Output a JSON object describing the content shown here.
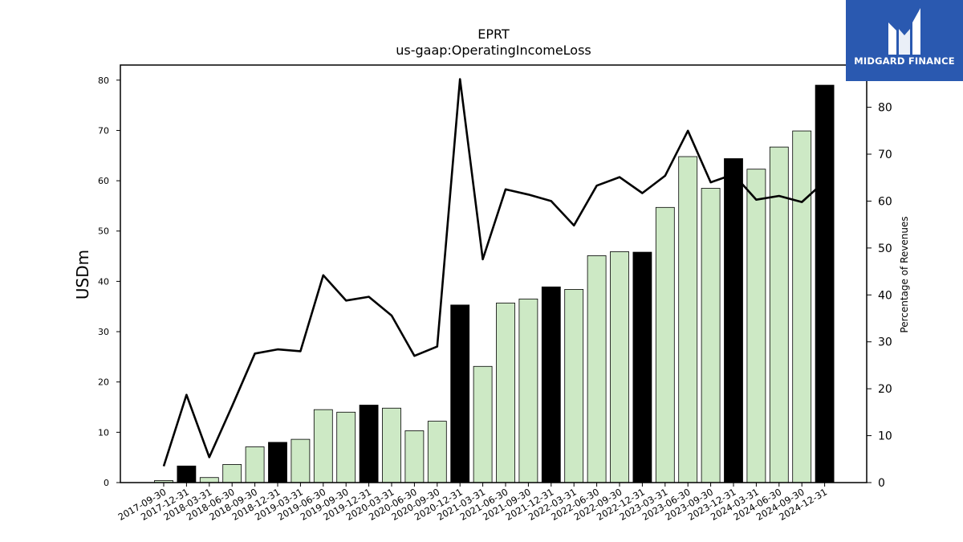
{
  "chart_data": {
    "type": "bar",
    "title": "EPRT",
    "subtitle": "us-gaap:OperatingIncomeLoss",
    "ylabel": "USDm",
    "y2label": "Percentage of Revenues",
    "ylim": [
      0,
      83
    ],
    "y2lim": [
      0,
      89
    ],
    "yticks": [
      "0",
      "10",
      "20",
      "30",
      "40",
      "50",
      "60",
      "70",
      "80"
    ],
    "y2ticks": [
      "0",
      "10",
      "20",
      "30",
      "40",
      "50",
      "60",
      "70",
      "80"
    ],
    "categories": [
      "2017-09-30",
      "2017-12-31",
      "2018-03-31",
      "2018-06-30",
      "2018-09-30",
      "2018-12-31",
      "2019-03-31",
      "2019-06-30",
      "2019-09-30",
      "2019-12-31",
      "2020-03-31",
      "2020-06-30",
      "2020-09-30",
      "2020-12-31",
      "2021-03-31",
      "2021-06-30",
      "2021-09-30",
      "2021-12-31",
      "2022-03-31",
      "2022-06-30",
      "2022-09-30",
      "2022-12-31",
      "2023-03-31",
      "2023-06-30",
      "2023-09-30",
      "2023-12-31",
      "2024-03-31",
      "2024-06-30",
      "2024-09-30",
      "2024-12-31"
    ],
    "series": [
      {
        "type": "bar",
        "values": [
          0.4,
          3.3,
          1.0,
          3.6,
          7.1,
          8.0,
          8.6,
          14.5,
          14.0,
          15.4,
          14.8,
          10.3,
          12.2,
          35.3,
          23.1,
          35.7,
          36.5,
          38.9,
          38.4,
          45.1,
          45.9,
          45.8,
          54.7,
          64.8,
          58.5,
          64.4,
          62.3,
          66.7,
          69.9,
          79.0
        ],
        "annual": [
          false,
          true,
          false,
          false,
          false,
          true,
          false,
          false,
          false,
          true,
          false,
          false,
          false,
          true,
          false,
          false,
          false,
          true,
          false,
          false,
          false,
          true,
          false,
          false,
          false,
          true,
          false,
          false,
          false,
          true
        ]
      },
      {
        "type": "line",
        "axis": "right",
        "values": [
          3.5,
          18.7,
          5.4,
          16.3,
          27.5,
          28.4,
          28.0,
          44.2,
          38.8,
          39.6,
          35.6,
          27.0,
          29.0,
          86.0,
          47.6,
          62.5,
          61.4,
          60.0,
          54.8,
          63.3,
          65.1,
          61.7,
          65.4,
          75.0,
          64.0,
          65.7,
          60.3,
          61.1,
          59.8,
          64.2
        ]
      }
    ],
    "colors": {
      "quarter_bar": "#cde9c5",
      "annual_bar": "#000000",
      "line": "#000000"
    },
    "grid": false
  },
  "logo": {
    "text": "MIDGARD FINANCE"
  }
}
